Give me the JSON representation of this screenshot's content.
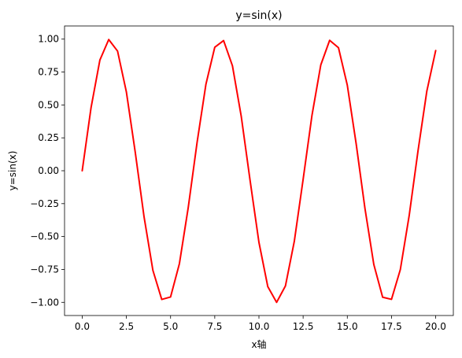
{
  "chart_data": {
    "type": "line",
    "title": "y=sin(x)",
    "xlabel": "x轴",
    "ylabel": "y=sin(x)",
    "xlim": [
      -1,
      21
    ],
    "ylim": [
      -1.1,
      1.1
    ],
    "grid": false,
    "x_ticks": [
      0.0,
      2.5,
      5.0,
      7.5,
      10.0,
      12.5,
      15.0,
      17.5,
      20.0
    ],
    "x_tick_labels": [
      "0.0",
      "2.5",
      "5.0",
      "7.5",
      "10.0",
      "12.5",
      "15.0",
      "17.5",
      "20.0"
    ],
    "y_ticks": [
      1.0,
      0.75,
      0.5,
      0.25,
      0.0,
      -0.25,
      -0.5,
      -0.75,
      -1.0
    ],
    "y_tick_labels": [
      "1.00",
      "0.75",
      "0.50",
      "0.25",
      "0.00",
      "−0.25",
      "−0.50",
      "−0.75",
      "−1.00"
    ],
    "series": [
      {
        "color": "#ff0000",
        "x": [
          0.0,
          0.5,
          1.0,
          1.5,
          2.0,
          2.5,
          3.0,
          3.5,
          4.0,
          4.5,
          5.0,
          5.5,
          6.0,
          6.5,
          7.0,
          7.5,
          8.0,
          8.5,
          9.0,
          9.5,
          10.0,
          10.5,
          11.0,
          11.5,
          12.0,
          12.5,
          13.0,
          13.5,
          14.0,
          14.5,
          15.0,
          15.5,
          16.0,
          16.5,
          17.0,
          17.5,
          18.0,
          18.5,
          19.0,
          19.5,
          20.0
        ],
        "y": [
          0.0,
          0.479,
          0.841,
          0.997,
          0.909,
          0.598,
          0.141,
          -0.351,
          -0.757,
          -0.978,
          -0.959,
          -0.706,
          -0.279,
          0.215,
          0.657,
          0.938,
          0.989,
          0.798,
          0.412,
          -0.075,
          -0.544,
          -0.88,
          -1.0,
          -0.875,
          -0.537,
          -0.066,
          0.42,
          0.804,
          0.991,
          0.935,
          0.65,
          0.206,
          -0.288,
          -0.712,
          -0.961,
          -0.977,
          -0.751,
          -0.342,
          0.15,
          0.605,
          0.913
        ]
      }
    ]
  }
}
